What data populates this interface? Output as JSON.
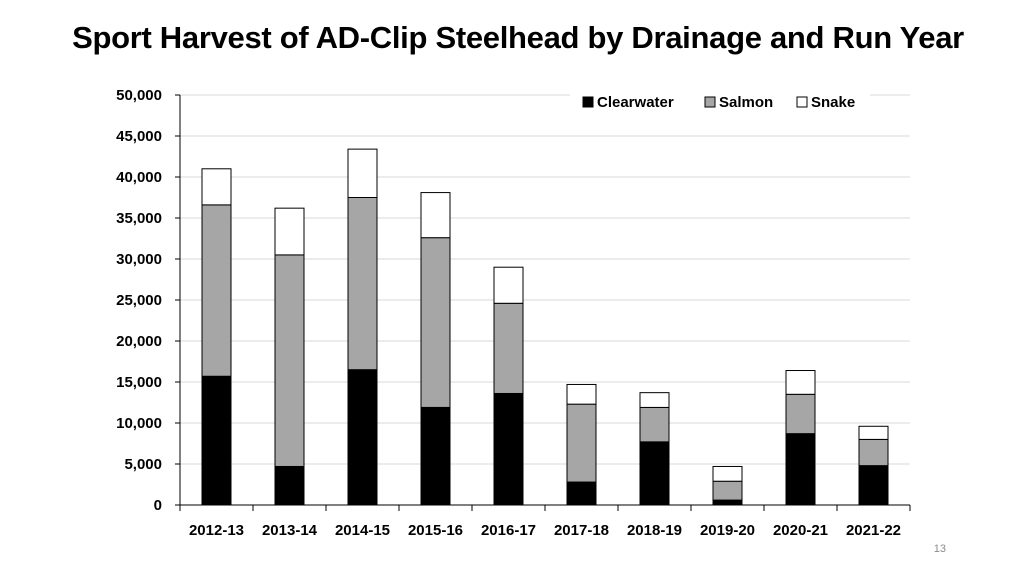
{
  "slide_number": "13",
  "chart_data": {
    "type": "bar",
    "stacked": true,
    "title": "Sport Harvest of AD-Clip Steelhead by Drainage and Run Year",
    "xlabel": "",
    "ylabel": "",
    "ylim": [
      0,
      50000
    ],
    "y_ticks": [
      0,
      5000,
      10000,
      15000,
      20000,
      25000,
      30000,
      35000,
      40000,
      45000,
      50000
    ],
    "y_tick_labels": [
      "0",
      "5,000",
      "10,000",
      "15,000",
      "20,000",
      "25,000",
      "30,000",
      "35,000",
      "40,000",
      "45,000",
      "50,000"
    ],
    "grid": true,
    "legend_position": "top-right",
    "categories": [
      "2012-13",
      "2013-14",
      "2014-15",
      "2015-16",
      "2016-17",
      "2017-18",
      "2018-19",
      "2019-20",
      "2020-21",
      "2021-22"
    ],
    "series": [
      {
        "name": "Clearwater",
        "color": "#000000",
        "values": [
          15700,
          4700,
          16500,
          11900,
          13600,
          2800,
          7700,
          600,
          8700,
          4800
        ]
      },
      {
        "name": "Salmon",
        "color": "#a6a6a6",
        "values": [
          20900,
          25800,
          21000,
          20700,
          11000,
          9500,
          4200,
          2300,
          4800,
          3200
        ]
      },
      {
        "name": "Snake",
        "color": "#ffffff",
        "values": [
          4400,
          5700,
          5900,
          5500,
          4400,
          2400,
          1800,
          1800,
          2900,
          1600
        ]
      }
    ]
  }
}
